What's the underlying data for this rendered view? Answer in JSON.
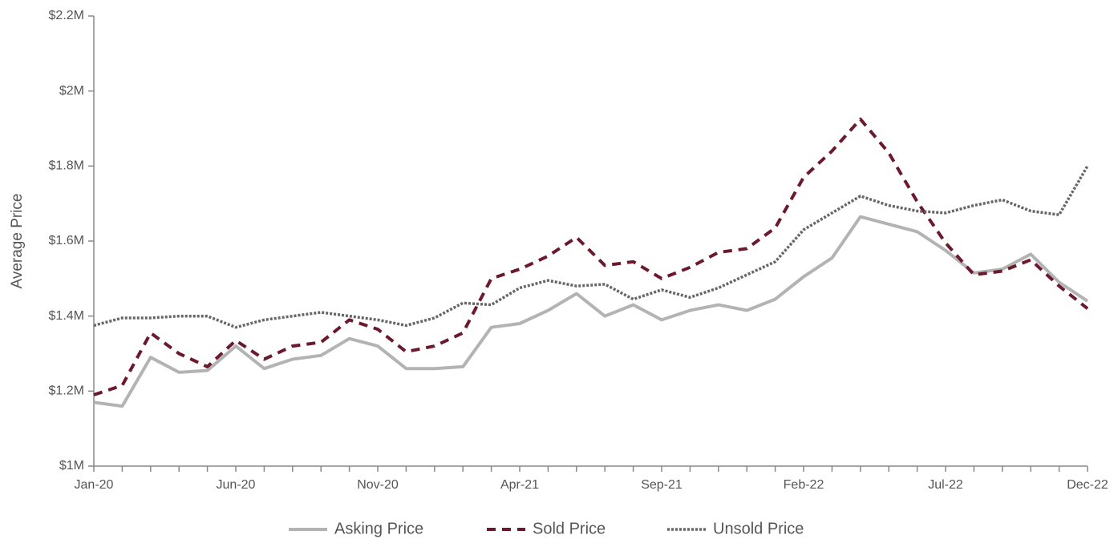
{
  "chart_data": {
    "type": "line",
    "y_label": "Average Price",
    "categories": [
      "Jan-20",
      null,
      null,
      null,
      null,
      "Jun-20",
      null,
      null,
      null,
      null,
      "Nov-20",
      null,
      null,
      null,
      null,
      "Apr-21",
      null,
      null,
      null,
      null,
      "Sep-21",
      null,
      null,
      null,
      null,
      "Feb-22",
      null,
      null,
      null,
      null,
      "Jul-22",
      null,
      null,
      null,
      null,
      "Dec-22"
    ],
    "ylim": [
      1000000,
      2200000
    ],
    "yticks": [
      {
        "value": 1000000,
        "label": "$1M"
      },
      {
        "value": 1200000,
        "label": "$1.2M"
      },
      {
        "value": 1400000,
        "label": "$1.4M"
      },
      {
        "value": 1600000,
        "label": "$1.6M"
      },
      {
        "value": 1800000,
        "label": "$1.8M"
      },
      {
        "value": 2000000,
        "label": "$2M"
      },
      {
        "value": 2200000,
        "label": "$2.2M"
      }
    ],
    "grid": false,
    "legend": "bottom",
    "series": [
      {
        "name": "Asking Price",
        "color": "#b3b3b3",
        "dash": "solid",
        "values": [
          1170000,
          1160000,
          1290000,
          1250000,
          1255000,
          1320000,
          1260000,
          1285000,
          1295000,
          1340000,
          1320000,
          1260000,
          1260000,
          1265000,
          1370000,
          1380000,
          1415000,
          1460000,
          1400000,
          1430000,
          1390000,
          1415000,
          1430000,
          1415000,
          1445000,
          1505000,
          1555000,
          1665000,
          1645000,
          1625000,
          1575000,
          1515000,
          1525000,
          1565000,
          1490000,
          1440000
        ]
      },
      {
        "name": "Sold Price",
        "color": "#6b1a2e",
        "dash": "dashed",
        "values": [
          1190000,
          1215000,
          1355000,
          1300000,
          1265000,
          1335000,
          1285000,
          1320000,
          1330000,
          1390000,
          1365000,
          1305000,
          1320000,
          1355000,
          1500000,
          1525000,
          1560000,
          1610000,
          1535000,
          1545000,
          1500000,
          1530000,
          1570000,
          1580000,
          1635000,
          1770000,
          1840000,
          1925000,
          1835000,
          1705000,
          1595000,
          1510000,
          1520000,
          1550000,
          1480000,
          1420000
        ]
      },
      {
        "name": "Unsold Price",
        "color": "#666666",
        "dash": "dotted",
        "values": [
          1375000,
          1395000,
          1395000,
          1400000,
          1400000,
          1370000,
          1390000,
          1400000,
          1410000,
          1400000,
          1390000,
          1375000,
          1395000,
          1435000,
          1430000,
          1475000,
          1495000,
          1480000,
          1485000,
          1445000,
          1470000,
          1450000,
          1475000,
          1510000,
          1545000,
          1630000,
          1675000,
          1720000,
          1695000,
          1680000,
          1675000,
          1695000,
          1710000,
          1680000,
          1670000,
          1800000
        ]
      }
    ]
  }
}
